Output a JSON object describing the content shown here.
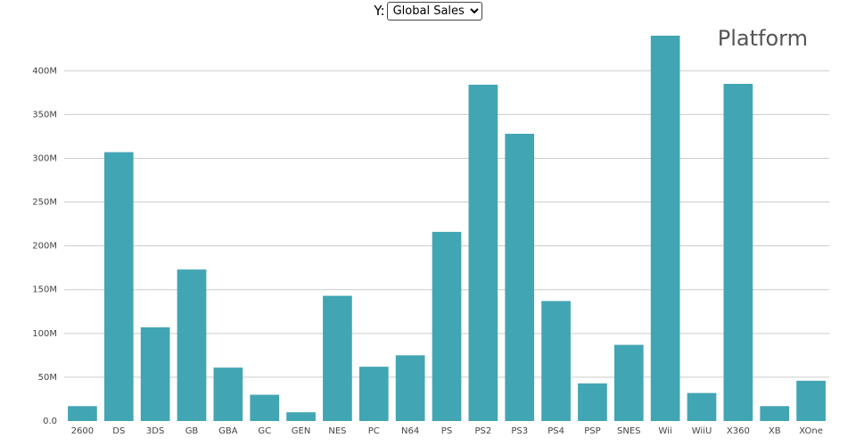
{
  "controls": {
    "y_label": "Y:",
    "y_selected": "Global Sales"
  },
  "colors": {
    "bar": "#42a5b3",
    "grid": "#cccccc"
  },
  "chart_data": {
    "type": "bar",
    "title": "Platform",
    "categories": [
      "2600",
      "DS",
      "3DS",
      "GB",
      "GBA",
      "GC",
      "GEN",
      "NES",
      "PC",
      "N64",
      "PS",
      "PS2",
      "PS3",
      "PS4",
      "PSP",
      "SNES",
      "Wii",
      "WiiU",
      "X360",
      "XB",
      "XOne"
    ],
    "values": [
      17,
      307,
      107,
      173,
      61,
      30,
      10,
      143,
      62,
      75,
      216,
      384,
      328,
      137,
      43,
      87,
      440,
      32,
      385,
      17,
      46
    ],
    "ylim": [
      0,
      440
    ],
    "yticks": [
      0,
      50,
      100,
      150,
      200,
      250,
      300,
      350,
      400
    ],
    "ytick_labels": [
      "0.0",
      "50M",
      "100M",
      "150M",
      "200M",
      "250M",
      "300M",
      "350M",
      "400M"
    ],
    "grid": true
  }
}
